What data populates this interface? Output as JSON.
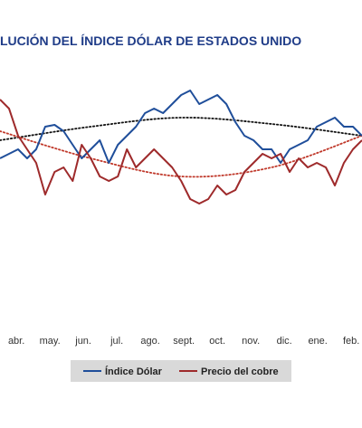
{
  "chart_data": {
    "type": "line",
    "title": "LUCIÓN DEL ÍNDICE DÓLAR DE ESTADOS UNIDO",
    "categories": [
      "abr.",
      "may.",
      "jun.",
      "jul.",
      "ago.",
      "sept.",
      "oct.",
      "nov.",
      "dic.",
      "ene.",
      "feb."
    ],
    "x": [
      -0.49,
      -0.22,
      0.05,
      0.32,
      0.59,
      0.86,
      1.14,
      1.41,
      1.68,
      1.95,
      2.22,
      2.49,
      2.76,
      3.03,
      3.3,
      3.57,
      3.84,
      4.11,
      4.38,
      4.65,
      4.92,
      5.19,
      5.46,
      5.73,
      6.0,
      6.27,
      6.54,
      6.81,
      7.08,
      7.35,
      7.62,
      7.89,
      8.16,
      8.43,
      8.7,
      8.97,
      9.24,
      9.51,
      9.78,
      10.05,
      10.32
    ],
    "xlim": [
      -0.49,
      10.32
    ],
    "ylim": [
      -60,
      210
    ],
    "series": [
      {
        "name": "Índice Dólar",
        "color": "#1f4e9a",
        "values": [
          125,
          130,
          135,
          125,
          135,
          160,
          162,
          155,
          140,
          125,
          135,
          145,
          120,
          140,
          150,
          160,
          175,
          180,
          175,
          185,
          195,
          200,
          185,
          190,
          195,
          185,
          165,
          150,
          145,
          135,
          135,
          120,
          135,
          140,
          145,
          160,
          165,
          170,
          160,
          160,
          150
        ]
      },
      {
        "name": "Precio del cobre",
        "color": "#9e2a2b",
        "values": [
          190,
          180,
          150,
          135,
          120,
          85,
          110,
          115,
          100,
          140,
          125,
          105,
          100,
          105,
          135,
          115,
          125,
          135,
          125,
          115,
          100,
          80,
          75,
          80,
          95,
          85,
          90,
          110,
          120,
          130,
          125,
          130,
          110,
          125,
          115,
          120,
          115,
          95,
          120,
          135,
          145
        ]
      }
    ],
    "trendlines": [
      {
        "color": "#111111",
        "x": [
          -0.49,
          2.22,
          4.92,
          7.62,
          10.32
        ],
        "values": [
          145,
          160,
          170,
          163,
          150
        ]
      },
      {
        "color": "#c0392b",
        "x": [
          -0.49,
          2.22,
          4.92,
          7.62,
          10.32
        ],
        "values": [
          155,
          125,
          105,
          115,
          150
        ]
      }
    ]
  }
}
